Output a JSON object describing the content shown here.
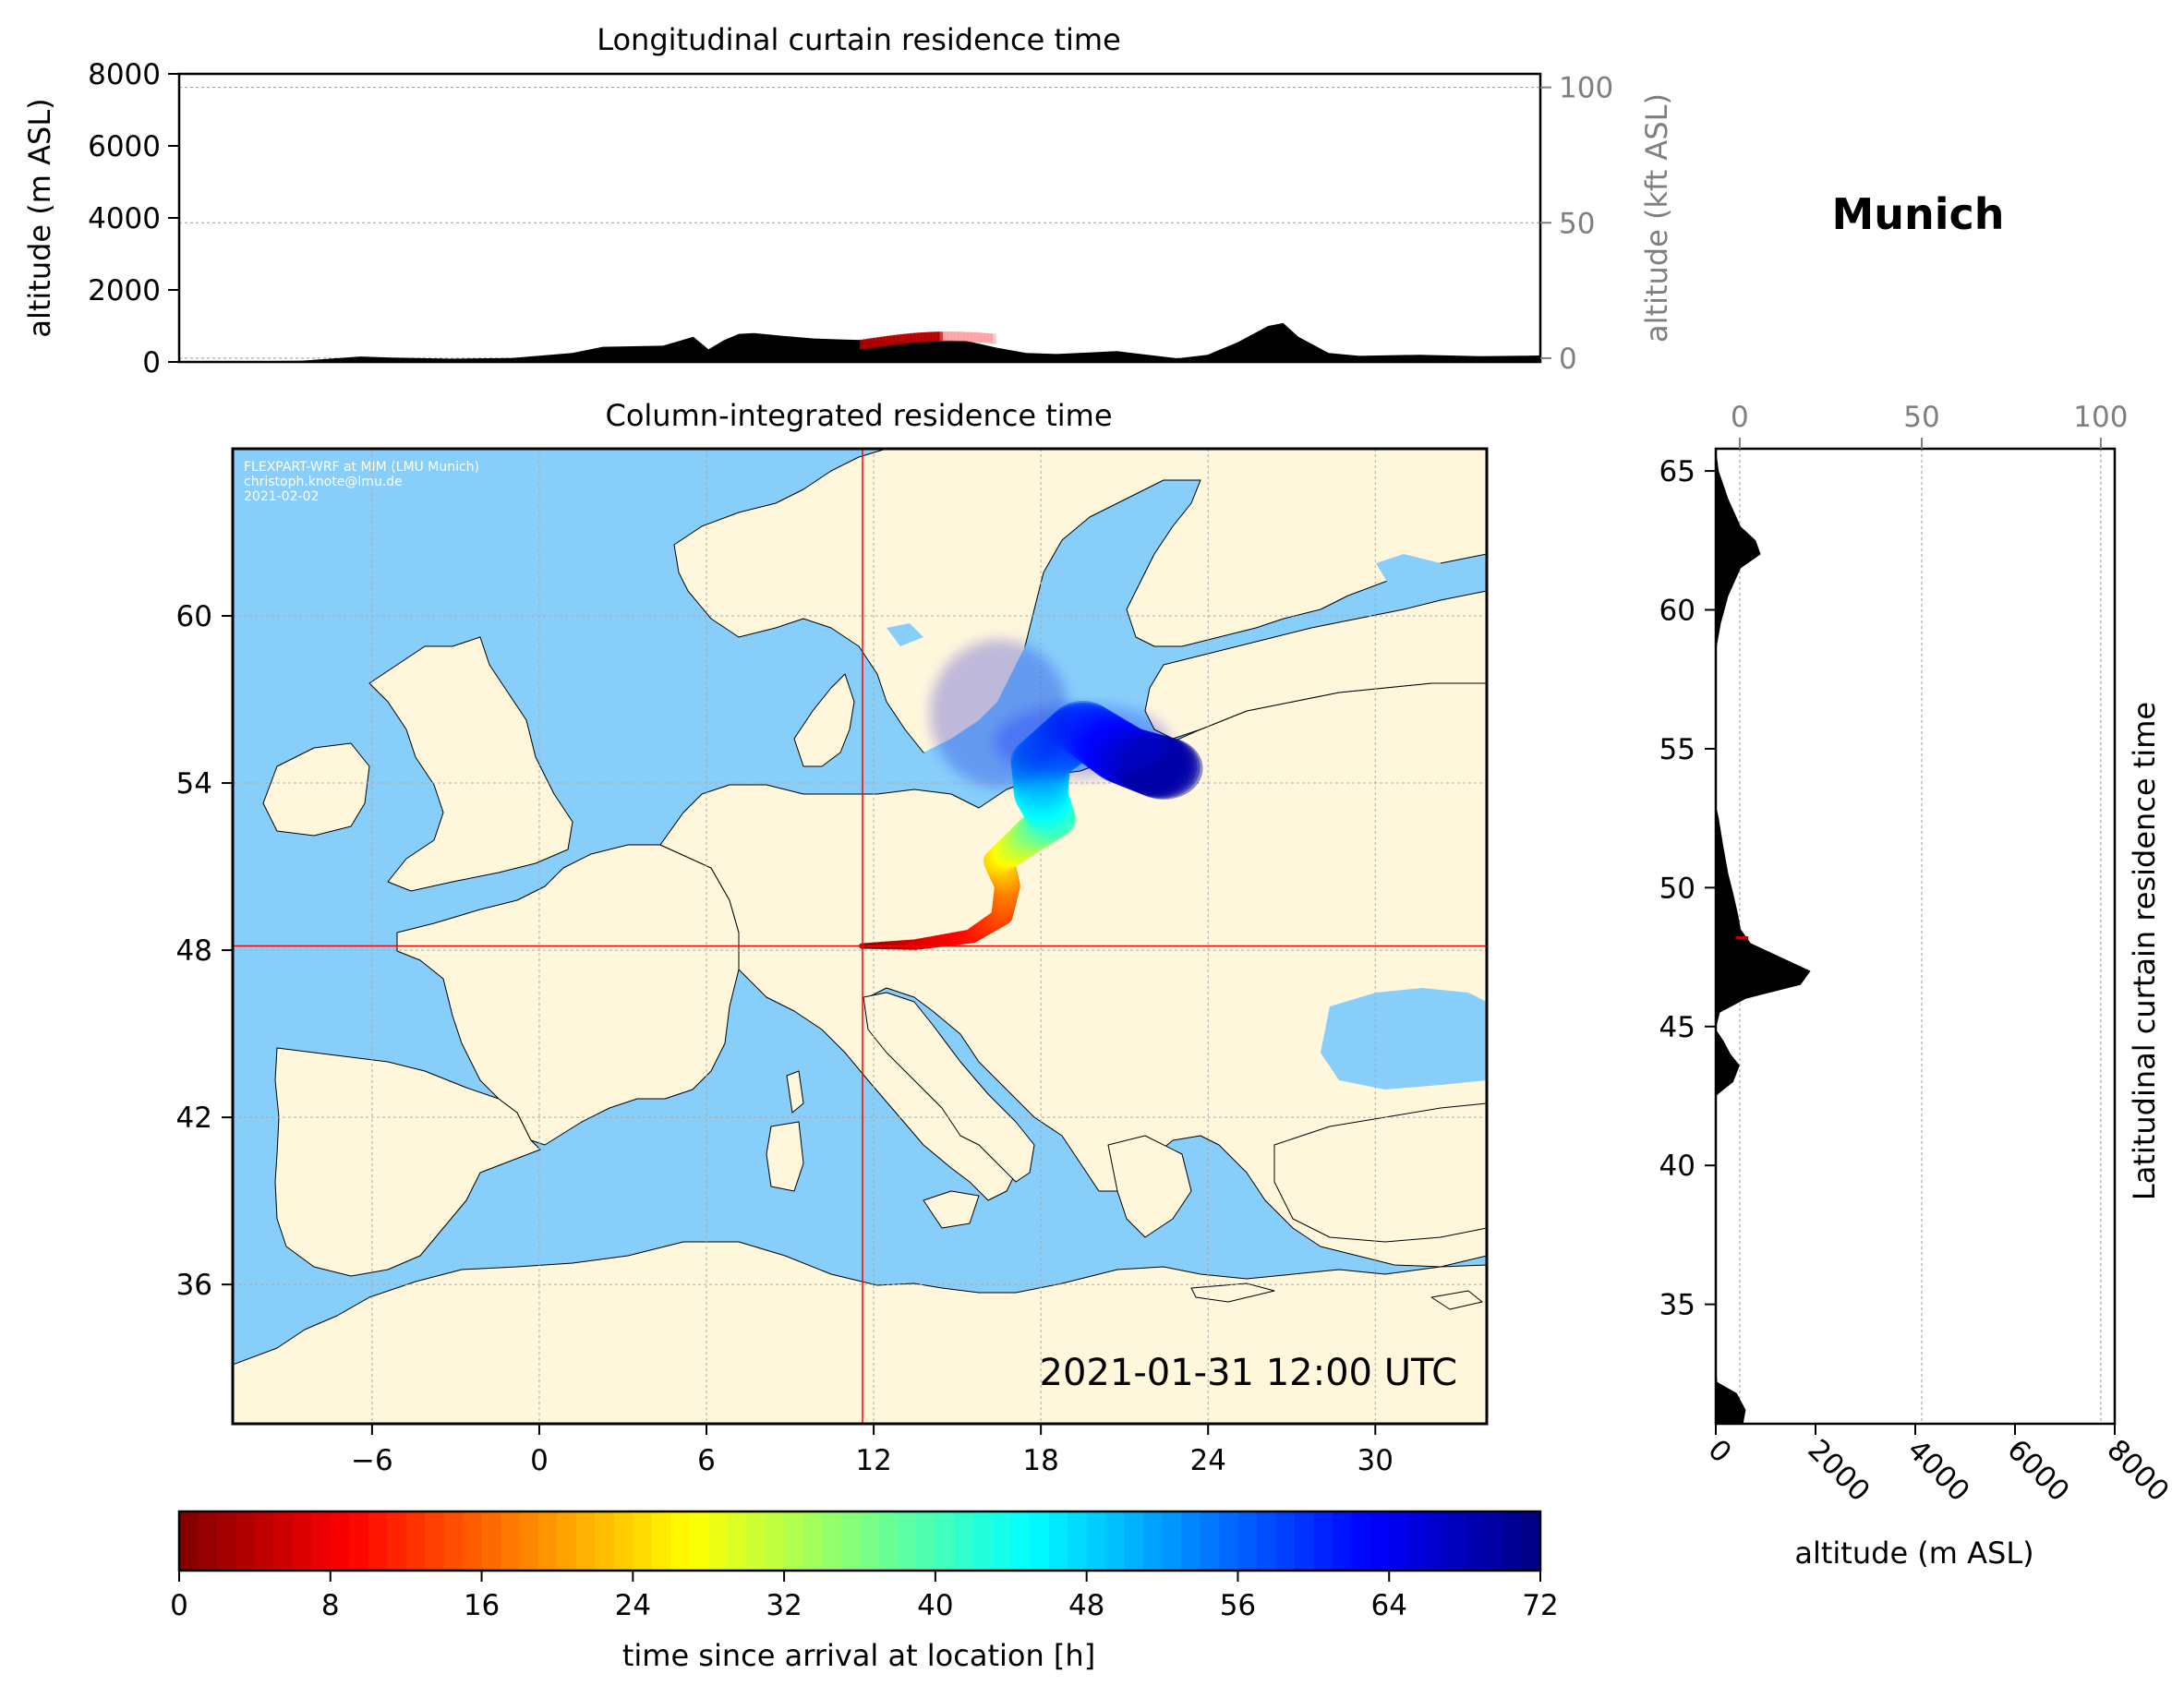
{
  "site_title": "Munich",
  "credits": [
    "FLEXPART-WRF at MIM (LMU Munich)",
    "christoph.knote@lmu.de",
    "2021-02-02"
  ],
  "timestamp": "2021-01-31 12:00 UTC",
  "colors": {
    "ocean": "#87cefa",
    "land": "#fff7dc",
    "terrain": "#000000",
    "crosshair": "#ff0000"
  },
  "chart_data": [
    {
      "id": "longitudinal-curtain",
      "type": "area",
      "title": "Longitudinal curtain residence time",
      "ylabel": "altitude (m ASL)",
      "ylim": [
        0,
        8000
      ],
      "yticks": [
        "0",
        "2000",
        "4000",
        "6000",
        "8000"
      ],
      "secondary_ylabel": "altitude (kft ASL)",
      "secondary_yticks": [
        "0",
        "50",
        "100"
      ],
      "secondary_ylim_kft": [
        -1.4,
        105
      ],
      "xlim": [
        -11,
        34
      ],
      "terrain_lon": [
        -11,
        -7,
        -5,
        -4,
        -2,
        0,
        2,
        3,
        5,
        6,
        6.5,
        7,
        7.5,
        8,
        9,
        10,
        11,
        12,
        13,
        14,
        15,
        16,
        17,
        18,
        19,
        20,
        22,
        23,
        24,
        25,
        25.5,
        26,
        27,
        28,
        30,
        32,
        34
      ],
      "terrain_m": [
        0,
        30,
        150,
        120,
        90,
        110,
        250,
        420,
        450,
        700,
        350,
        600,
        780,
        800,
        720,
        650,
        620,
        600,
        560,
        600,
        590,
        400,
        250,
        220,
        260,
        300,
        100,
        200,
        550,
        1000,
        1080,
        700,
        250,
        170,
        200,
        160,
        180
      ],
      "plume": {
        "lon_range": [
          11.5,
          15.8
        ],
        "alt_range_m": [
          500,
          1000
        ],
        "color": "#c20000"
      },
      "munich_altitude_line_m": 520
    },
    {
      "id": "column-integrated-map",
      "type": "heatmap",
      "title": "Column-integrated residence time",
      "xlim": [
        -11,
        34
      ],
      "ylim": [
        31,
        66
      ],
      "xticks": [
        "−6",
        "0",
        "6",
        "12",
        "18",
        "24",
        "30"
      ],
      "xtick_values": [
        -6,
        0,
        6,
        12,
        18,
        24,
        30
      ],
      "yticks": [
        "36",
        "42",
        "48",
        "54",
        "60"
      ],
      "ytick_values": [
        36,
        42,
        48,
        54,
        60
      ],
      "crosshair": {
        "lon": 11.6,
        "lat": 48.15
      },
      "trajectory": [
        {
          "lon": 11.6,
          "lat": 48.15,
          "hours": 0
        },
        {
          "lon": 13.5,
          "lat": 48.2,
          "hours": 6
        },
        {
          "lon": 15.5,
          "lat": 48.5,
          "hours": 10
        },
        {
          "lon": 16.6,
          "lat": 49.2,
          "hours": 14
        },
        {
          "lon": 16.8,
          "lat": 50.3,
          "hours": 18
        },
        {
          "lon": 16.5,
          "lat": 51.2,
          "hours": 24
        },
        {
          "lon": 17.5,
          "lat": 52.0,
          "hours": 32
        },
        {
          "lon": 18.4,
          "lat": 52.7,
          "hours": 40
        },
        {
          "lon": 18.0,
          "lat": 53.6,
          "hours": 46
        },
        {
          "lon": 18.0,
          "lat": 54.8,
          "hours": 52
        },
        {
          "lon": 19.5,
          "lat": 56.0,
          "hours": 58
        },
        {
          "lon": 21.0,
          "lat": 55.0,
          "hours": 64
        },
        {
          "lon": 22.5,
          "lat": 54.5,
          "hours": 70
        }
      ]
    },
    {
      "id": "latitudinal-curtain",
      "type": "area",
      "ylabel": "Latitudinal curtain residence time",
      "xlabel": "altitude (m ASL)",
      "xlim": [
        0,
        8000
      ],
      "xticks": [
        "0",
        "2000",
        "4000",
        "6000",
        "8000"
      ],
      "secondary_xticks": [
        "0",
        "50",
        "100"
      ],
      "ylim": [
        30.7,
        65.8
      ],
      "yticks": [
        "35",
        "40",
        "45",
        "50",
        "55",
        "60",
        "65"
      ],
      "ytick_values": [
        35,
        40,
        45,
        50,
        55,
        60,
        65
      ],
      "terrain_lat": [
        30.7,
        31.2,
        31.8,
        32.2,
        33.0,
        42.5,
        43.0,
        43.6,
        44.0,
        44.5,
        44.9,
        45.5,
        46.0,
        46.5,
        47.0,
        47.5,
        48.0,
        48.5,
        49.0,
        49.8,
        50.5,
        51.5,
        52.5,
        53.0,
        58.5,
        59.5,
        60.5,
        61.5,
        62.0,
        62.5,
        63.0,
        64.0,
        65.0,
        65.8
      ],
      "terrain_m": [
        550,
        600,
        420,
        30,
        0,
        0,
        350,
        480,
        300,
        150,
        0,
        80,
        600,
        1700,
        1900,
        1300,
        700,
        500,
        450,
        350,
        250,
        150,
        60,
        0,
        0,
        100,
        250,
        500,
        900,
        800,
        500,
        250,
        60,
        0
      ],
      "plume": {
        "lat": 48.2,
        "alt_m": 650
      }
    },
    {
      "id": "colorbar",
      "type": "heatmap",
      "label": "time since arrival at location [h]",
      "range": [
        0,
        72
      ],
      "ticks": [
        "0",
        "8",
        "16",
        "24",
        "32",
        "40",
        "48",
        "56",
        "64",
        "72"
      ],
      "colormap": "jet_r"
    }
  ]
}
